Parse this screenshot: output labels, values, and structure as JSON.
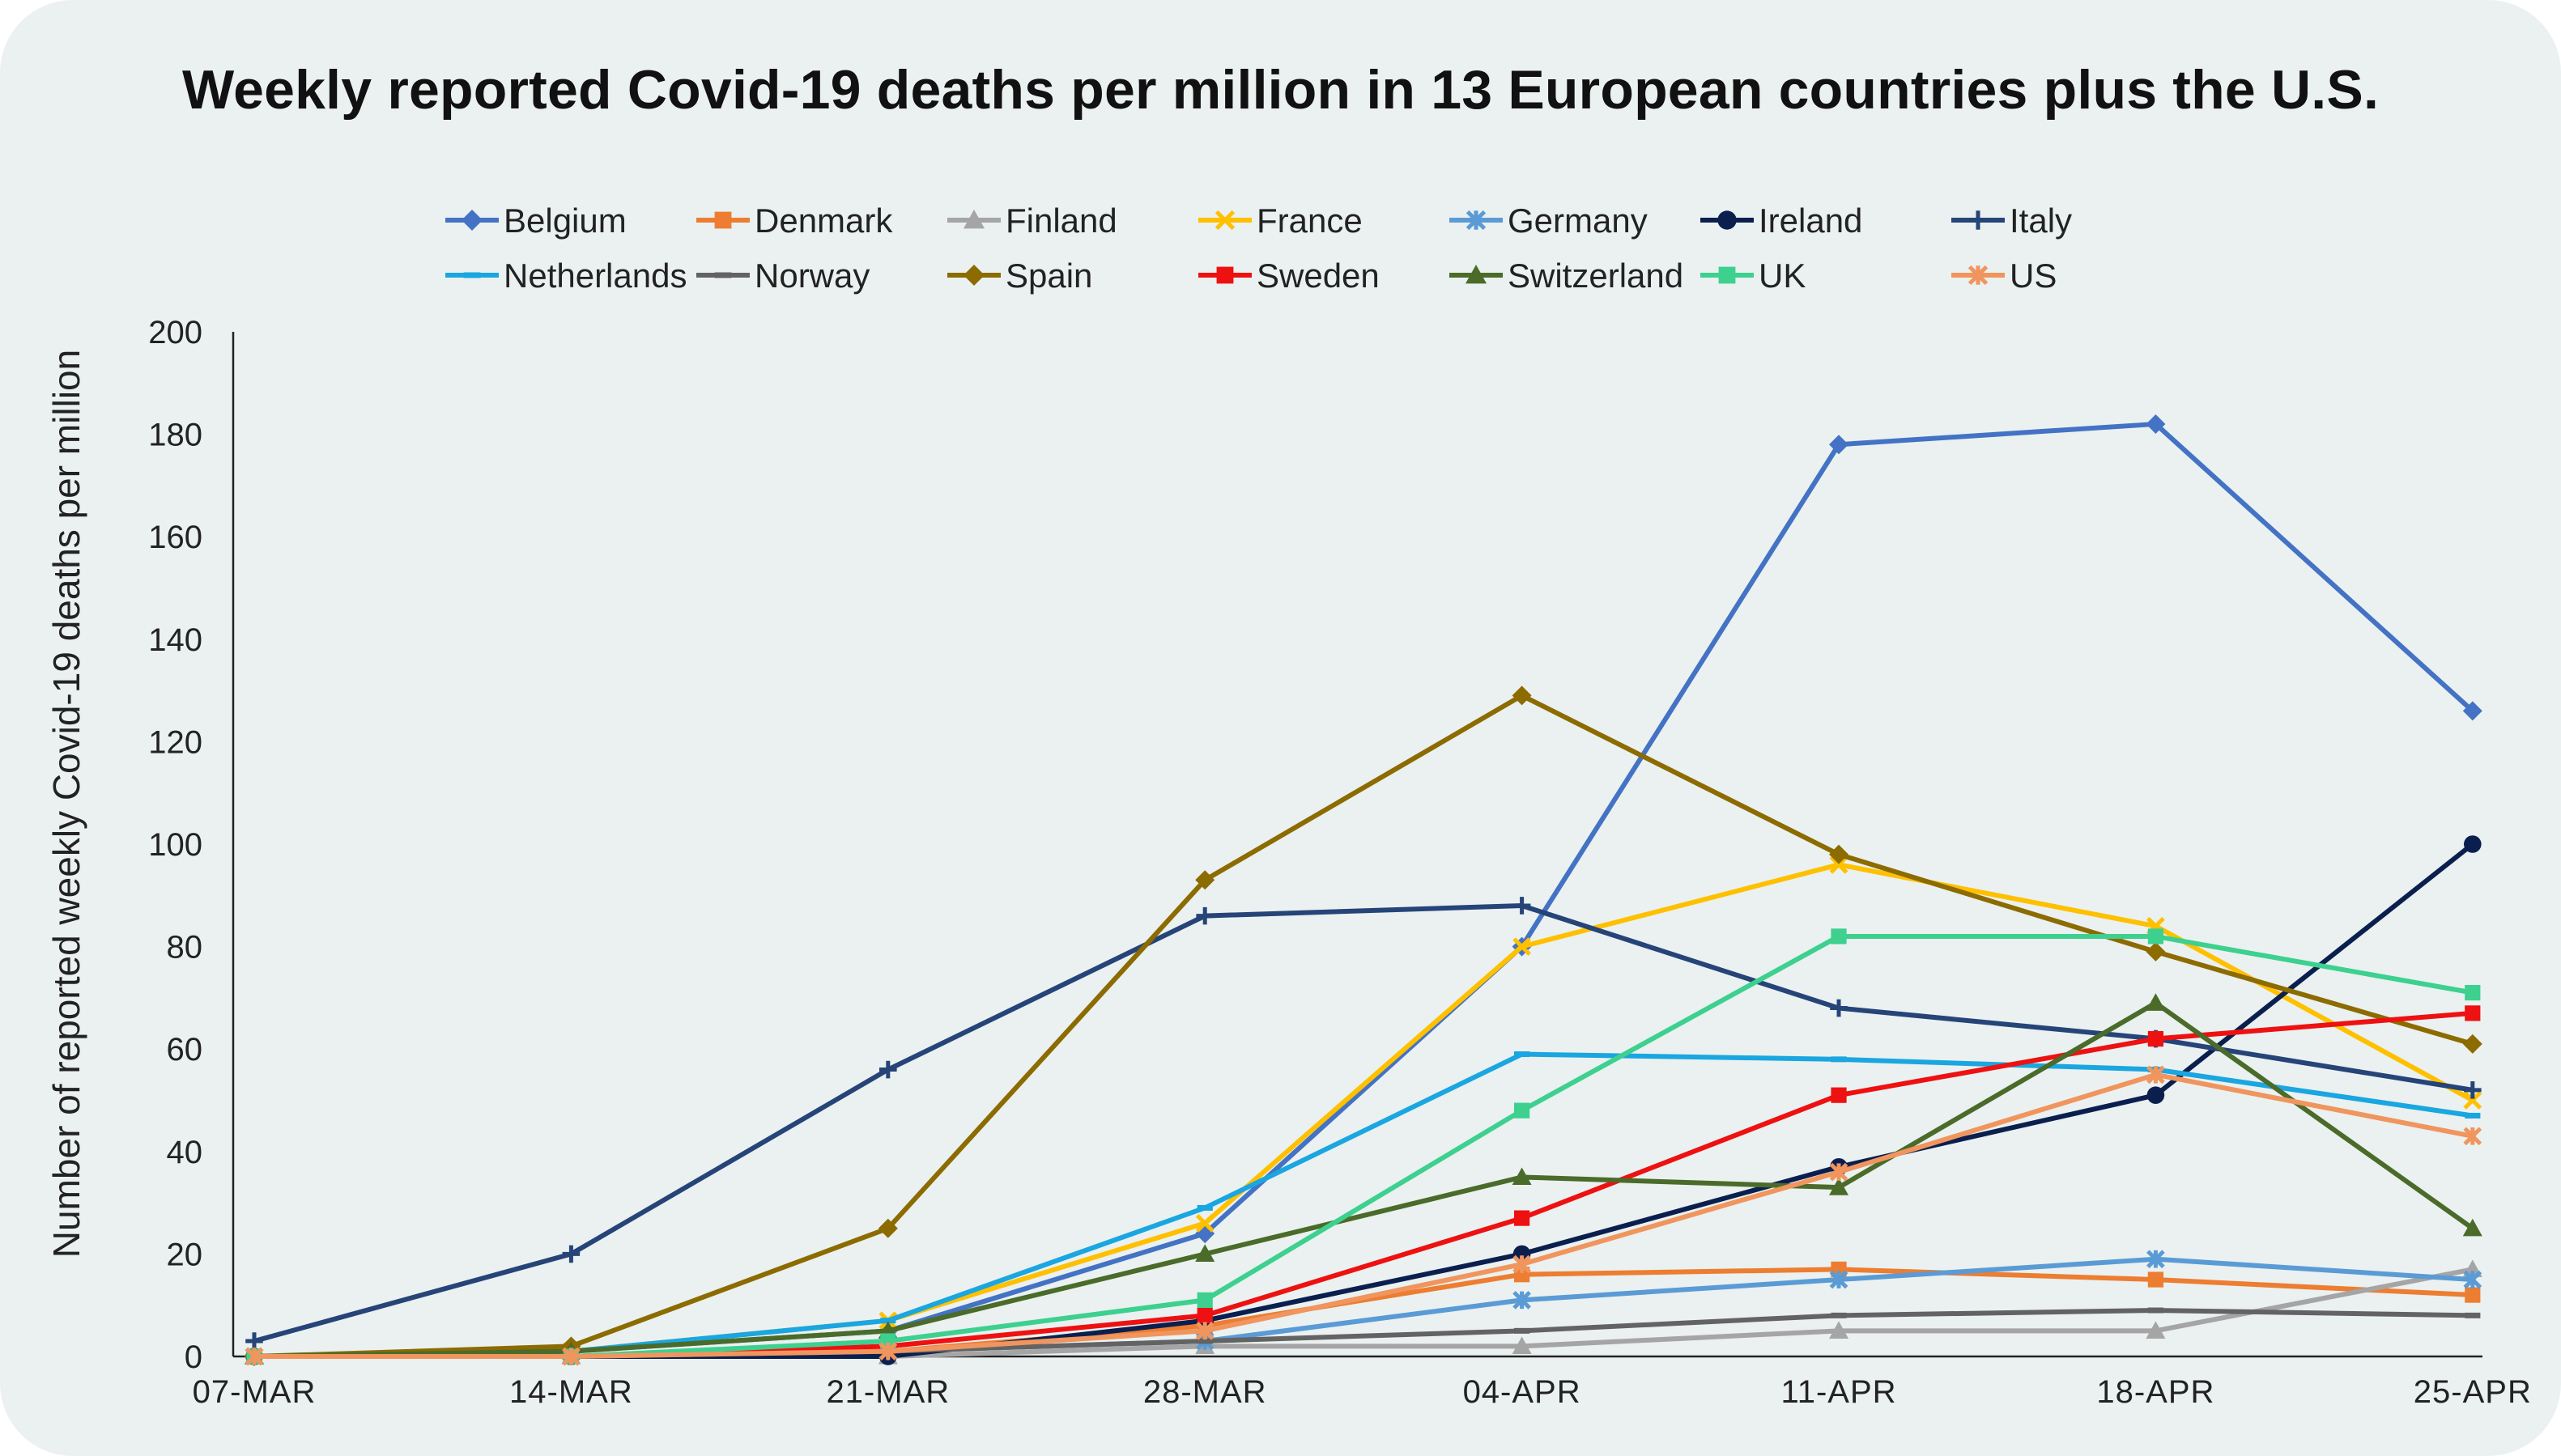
{
  "chart_data": {
    "type": "line",
    "title": "Weekly reported Covid-19 deaths per million in 13 European countries plus the U.S.",
    "xlabel": "",
    "ylabel": "Number of reported weekly Covid-19 deaths per million",
    "categories": [
      "07-MAR",
      "14-MAR",
      "21-MAR",
      "28-MAR",
      "04-APR",
      "11-APR",
      "18-APR",
      "25-APR"
    ],
    "ylim": [
      0,
      200
    ],
    "yticks": [
      0,
      20,
      40,
      60,
      80,
      100,
      120,
      140,
      160,
      180,
      200
    ],
    "grid": false,
    "legend_position": "top",
    "series": [
      {
        "name": "Belgium",
        "color": "#4472c4",
        "marker": "diamond",
        "values": [
          0,
          1,
          5,
          24,
          80,
          178,
          182,
          126
        ]
      },
      {
        "name": "Denmark",
        "color": "#ed7d31",
        "marker": "square",
        "values": [
          0,
          0,
          1,
          6,
          16,
          17,
          15,
          12
        ]
      },
      {
        "name": "Finland",
        "color": "#a5a5a5",
        "marker": "triangle",
        "values": [
          0,
          0,
          0,
          2,
          2,
          5,
          5,
          17
        ]
      },
      {
        "name": "France",
        "color": "#ffc000",
        "marker": "x",
        "values": [
          0,
          1,
          7,
          26,
          80,
          96,
          84,
          50
        ]
      },
      {
        "name": "Germany",
        "color": "#5b9bd5",
        "marker": "star",
        "values": [
          0,
          0,
          1,
          3,
          11,
          15,
          19,
          15
        ]
      },
      {
        "name": "Ireland",
        "color": "#0b1f4f",
        "marker": "circle",
        "values": [
          0,
          0,
          0,
          7,
          20,
          37,
          51,
          100
        ]
      },
      {
        "name": "Italy",
        "color": "#264478",
        "marker": "plus",
        "values": [
          3,
          20,
          56,
          86,
          88,
          68,
          62,
          52
        ]
      },
      {
        "name": "Netherlands",
        "color": "#1aa6e0",
        "marker": "dash",
        "values": [
          0,
          1,
          7,
          29,
          59,
          58,
          56,
          47
        ]
      },
      {
        "name": "Norway",
        "color": "#636363",
        "marker": "dash",
        "values": [
          0,
          0,
          1,
          3,
          5,
          8,
          9,
          8
        ]
      },
      {
        "name": "Spain",
        "color": "#8c6b00",
        "marker": "diamond",
        "values": [
          0,
          2,
          25,
          93,
          129,
          98,
          79,
          61
        ]
      },
      {
        "name": "Sweden",
        "color": "#ee1111",
        "marker": "square",
        "values": [
          0,
          0,
          2,
          8,
          27,
          51,
          62,
          67
        ]
      },
      {
        "name": "Switzerland",
        "color": "#4a6b2a",
        "marker": "triangle",
        "values": [
          0,
          1,
          5,
          20,
          35,
          33,
          69,
          25
        ]
      },
      {
        "name": "UK",
        "color": "#3dd08f",
        "marker": "square",
        "values": [
          0,
          0,
          3,
          11,
          48,
          82,
          82,
          71
        ]
      },
      {
        "name": "US",
        "color": "#f0955e",
        "marker": "star",
        "values": [
          0,
          0,
          1,
          5,
          18,
          36,
          55,
          43
        ]
      }
    ]
  }
}
